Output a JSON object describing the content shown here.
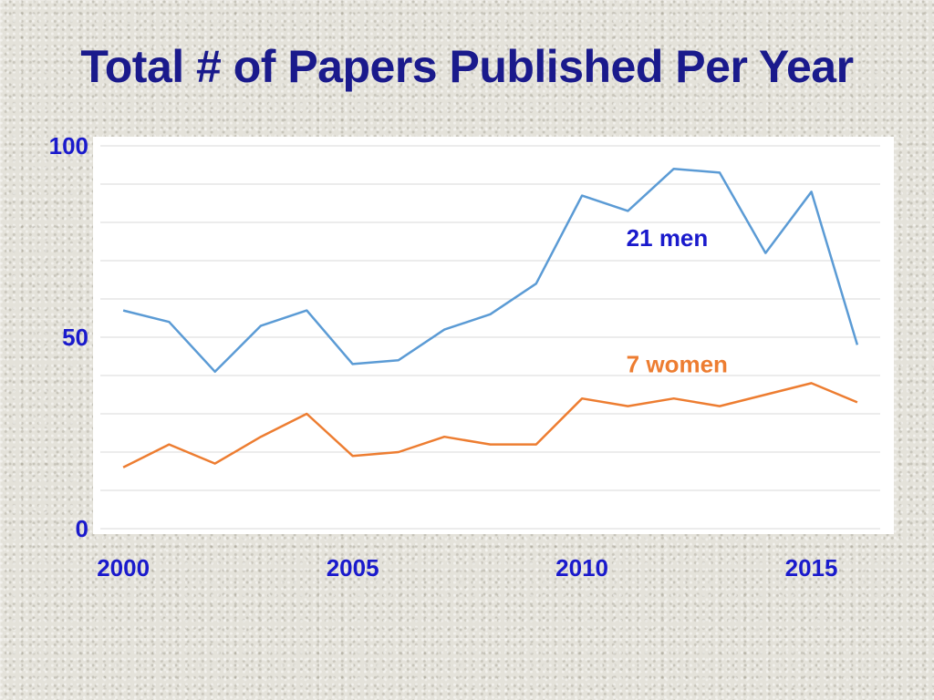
{
  "slide": {
    "title": "Total # of Papers Published Per Year"
  },
  "colors": {
    "title": "#1a1a8c",
    "tick_labels": "#1a1acc",
    "men": "#5b9bd5",
    "women": "#ed7d31",
    "men_label": "#1a1acc",
    "women_label": "#ed7d31",
    "gridline": "#d9d9d9"
  },
  "chart_data": {
    "type": "line",
    "title": "Total # of Papers Published Per Year",
    "xlabel": "",
    "ylabel": "",
    "x": [
      2000,
      2001,
      2002,
      2003,
      2004,
      2005,
      2006,
      2007,
      2008,
      2009,
      2010,
      2011,
      2012,
      2013,
      2014,
      2015,
      2016
    ],
    "xlim": [
      1999.5,
      2016.5
    ],
    "ylim": [
      0,
      100
    ],
    "x_ticks": [
      2000,
      2005,
      2010,
      2015
    ],
    "y_ticks": [
      0,
      50,
      100
    ],
    "grid_step": 10,
    "grid": true,
    "series": [
      {
        "name": "21 men",
        "color_key": "men",
        "values": [
          57,
          54,
          41,
          53,
          57,
          43,
          44,
          52,
          56,
          64,
          87,
          83,
          94,
          93,
          72,
          88,
          48
        ]
      },
      {
        "name": "7 women",
        "color_key": "women",
        "values": [
          16,
          22,
          17,
          24,
          30,
          19,
          20,
          24,
          22,
          22,
          34,
          32,
          34,
          32,
          35,
          38,
          33
        ]
      }
    ],
    "annotations": [
      {
        "text": "21 men",
        "series": "21 men",
        "x": 2012,
        "y": 76
      },
      {
        "text": "7 women",
        "series": "7 women",
        "x": 2012,
        "y": 43
      }
    ]
  }
}
